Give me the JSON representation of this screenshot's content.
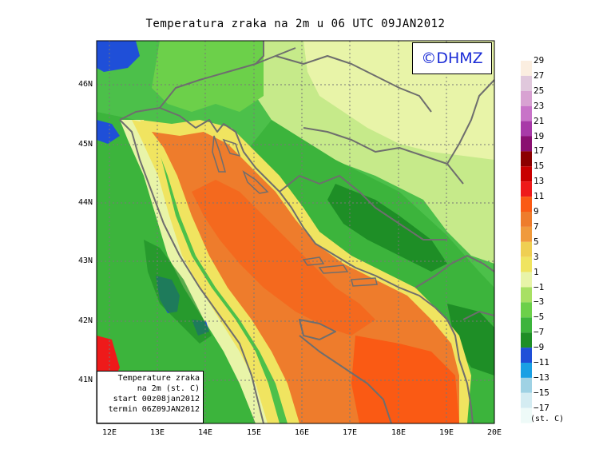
{
  "title": "Temperatura zraka na 2m u 06 UTC 09JAN2012",
  "logo_text": "©DHMZ",
  "info_box": {
    "line1": "Temperature zraka",
    "line2": "na 2m (st. C)",
    "line3": "start 00z08jan2012",
    "line4": "termin 06Z09JAN2012"
  },
  "lat_labels": [
    "46N",
    "45N",
    "44N",
    "43N",
    "42N",
    "41N"
  ],
  "lon_labels": [
    "12E",
    "13E",
    "14E",
    "15E",
    "16E",
    "17E",
    "18E",
    "19E",
    "20E"
  ],
  "legend": {
    "unit": "(st. C)",
    "labels": [
      "29",
      "27",
      "25",
      "23",
      "21",
      "19",
      "17",
      "15",
      "13",
      "11",
      "9",
      "7",
      "5",
      "3",
      "1",
      "−1",
      "−3",
      "−5",
      "−7",
      "−9",
      "−11",
      "−13",
      "−15",
      "−17"
    ],
    "colors": [
      "#fbeee0",
      "#e0c8dc",
      "#d8a2d2",
      "#c873c8",
      "#a83aa8",
      "#8a1070",
      "#8c0000",
      "#c80000",
      "#ee1a1a",
      "#fa5a14",
      "#ee7c2c",
      "#f09a3c",
      "#efcf52",
      "#f0e460",
      "#e8f4a8",
      "#a8e064",
      "#6cd04a",
      "#3cb43c",
      "#1e8e26",
      "#1f4fd8",
      "#1aa0e4",
      "#9fd2e4",
      "#d4ecf2",
      "#eefaf8"
    ]
  },
  "colors": {
    "land_green": "#3cb43c",
    "sea_orange": "#ee7c2c",
    "coast_line": "#6e6e6e",
    "logo_text": "#1a2bd6"
  }
}
